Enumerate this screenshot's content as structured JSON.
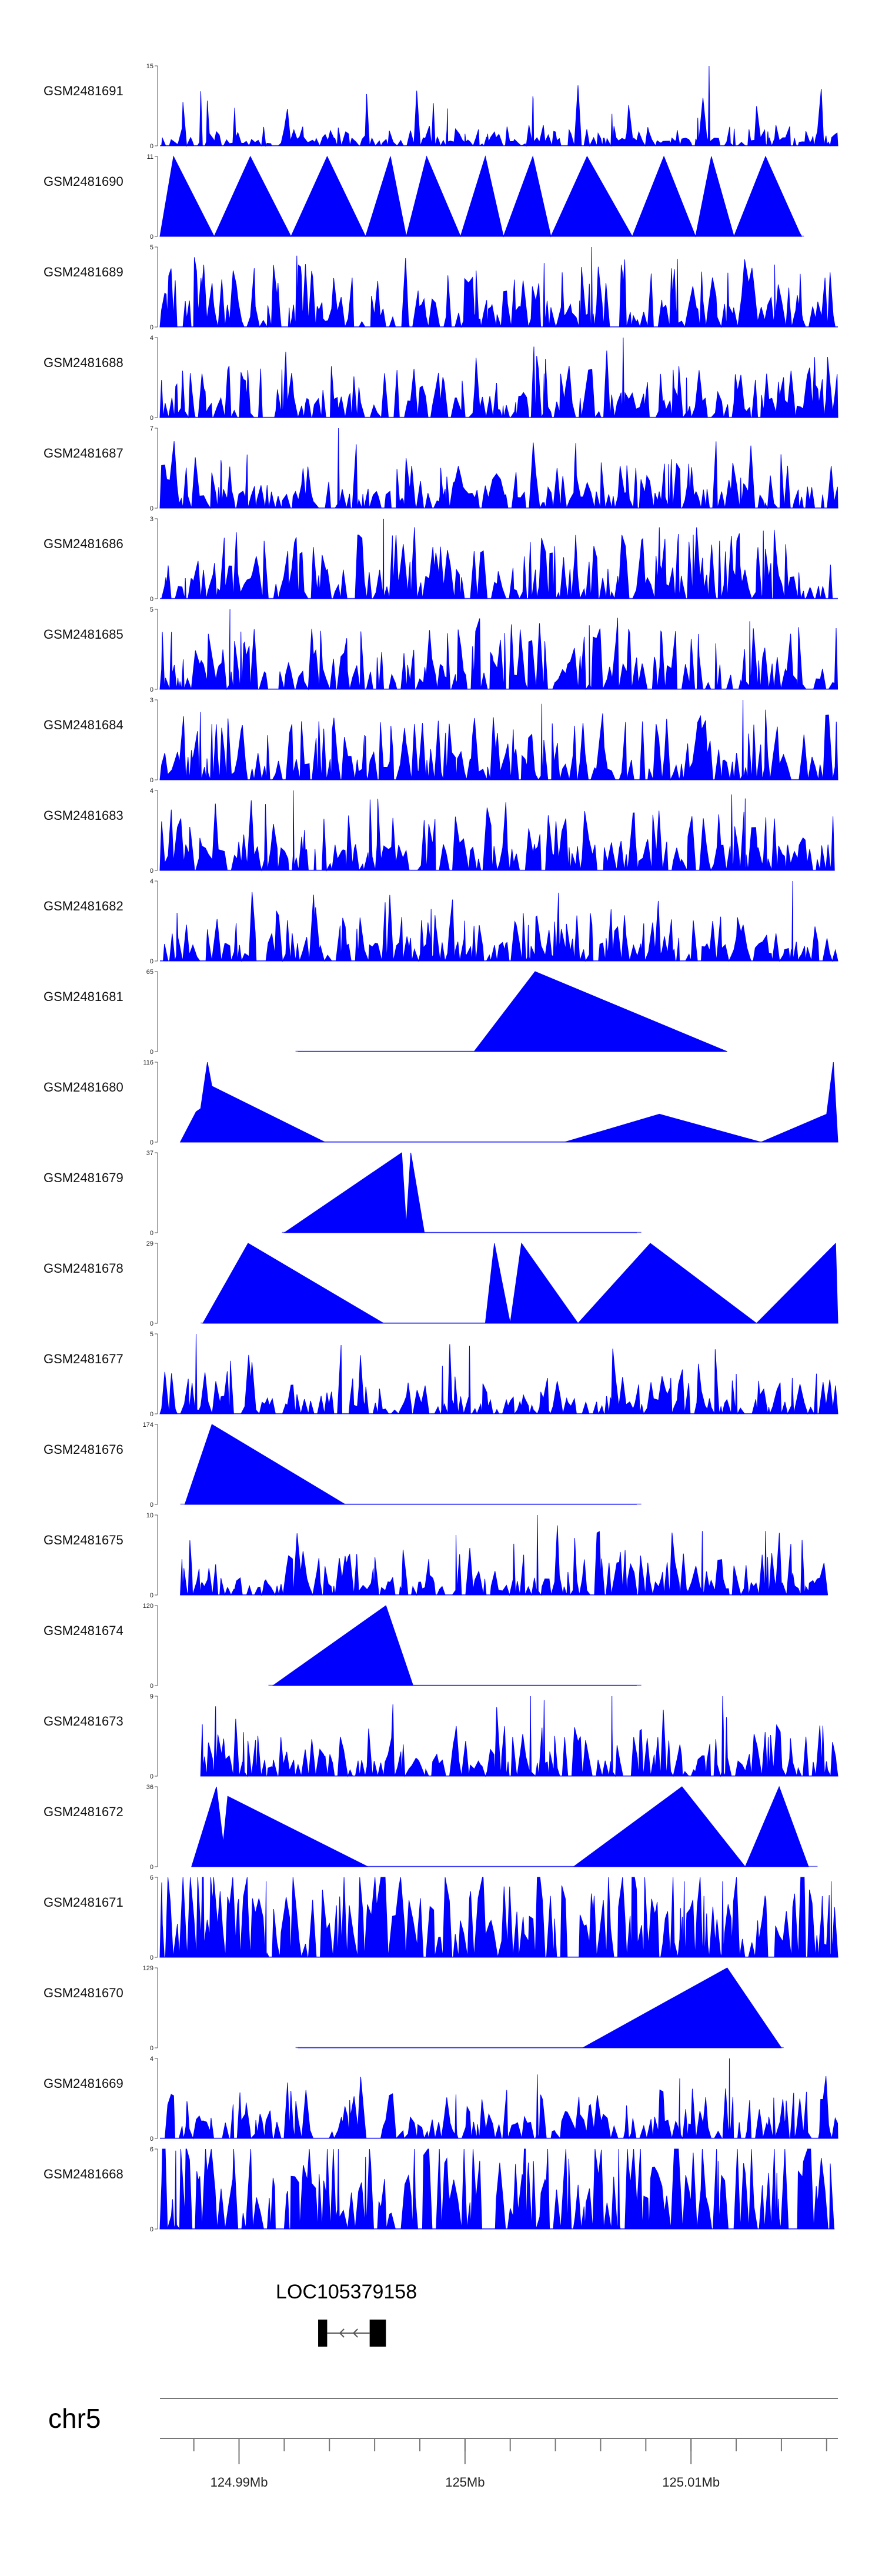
{
  "chart_data": {
    "type": "area",
    "title": "",
    "xlabel": "",
    "fill_color": "#0000ff",
    "xlim": [
      124.9865,
      125.0165
    ],
    "chromosome": "chr5",
    "gene": {
      "name": "LOC105379158",
      "start": 124.9935,
      "end": 124.9965,
      "exon_width": 0.0004,
      "strand": "-"
    },
    "axis": {
      "ticks": [
        124.99,
        125.0,
        125.01
      ],
      "tick_labels": [
        "124.99Mb",
        "125Mb",
        "125.01Mb"
      ],
      "minor_step": 0.002
    },
    "tracks": [
      {
        "name": "GSM2481691",
        "ymax": 15,
        "min_label": "0",
        "max_label": "15",
        "shape": "dense",
        "seed": 11,
        "base": 0.1,
        "cover": [
          0.0,
          1.0
        ],
        "peaks": [
          [
            124.9992,
            0.2
          ],
          [
            125.0,
            0.15
          ],
          [
            125.003,
            0.62
          ],
          [
            125.0065,
            0.4
          ],
          [
            125.0108,
            1.0
          ],
          [
            125.0103,
            0.35
          ],
          [
            125.001,
            0.15
          ],
          [
            125.0134,
            0.18
          ]
        ]
      },
      {
        "name": "GSM2481690",
        "ymax": 11,
        "min_label": "0",
        "max_label": "11",
        "shape": "sparse",
        "cover": [
          0.0,
          0.95
        ],
        "points": [
          [
            124.9865,
            0
          ],
          [
            124.9871,
            1.0
          ],
          [
            124.9889,
            0
          ],
          [
            124.9905,
            1.0
          ],
          [
            124.9923,
            0
          ],
          [
            124.9939,
            1.0
          ],
          [
            124.9956,
            0
          ],
          [
            124.9967,
            1.0
          ],
          [
            124.9974,
            0
          ],
          [
            124.9983,
            1.0
          ],
          [
            124.9998,
            0
          ],
          [
            125.0009,
            1.0
          ],
          [
            125.0017,
            0
          ],
          [
            125.003,
            1.0
          ],
          [
            125.0038,
            0
          ],
          [
            125.0054,
            1.0
          ],
          [
            125.0074,
            0
          ],
          [
            125.0088,
            1.0
          ],
          [
            125.0102,
            0
          ],
          [
            125.0109,
            1.0
          ],
          [
            125.0119,
            0
          ],
          [
            125.0133,
            1.0
          ],
          [
            125.0149,
            0
          ],
          [
            125.0148,
            0.05
          ]
        ]
      },
      {
        "name": "GSM2481689",
        "ymax": 5,
        "min_label": "0",
        "max_label": "5",
        "shape": "dense",
        "seed": 23,
        "base": 0.3,
        "cover": [
          0.0,
          1.0
        ],
        "peaks": [
          [
            125.0056,
            1.0
          ],
          [
            125.0035,
            0.8
          ],
          [
            125.0094,
            0.85
          ],
          [
            125.0137,
            0.78
          ]
        ]
      },
      {
        "name": "GSM2481688",
        "ymax": 4,
        "min_label": "0",
        "max_label": "4",
        "shape": "dense",
        "seed": 37,
        "base": 0.25,
        "cover": [
          0.0,
          1.0
        ],
        "peaks": [
          [
            125.007,
            1.0
          ],
          [
            124.9919,
            0.6
          ],
          [
            125.0035,
            0.55
          ],
          [
            125.0098,
            0.5
          ]
        ]
      },
      {
        "name": "GSM2481687",
        "ymax": 7,
        "min_label": "0",
        "max_label": "7",
        "shape": "dense",
        "seed": 41,
        "base": 0.22,
        "cover": [
          0.0,
          1.0
        ],
        "peaks": [
          [
            124.9944,
            1.0
          ],
          [
            124.9892,
            0.6
          ],
          [
            125.009,
            0.55
          ],
          [
            125.0122,
            0.38
          ]
        ]
      },
      {
        "name": "GSM2481686",
        "ymax": 3,
        "min_label": "0",
        "max_label": "3",
        "shape": "dense",
        "seed": 53,
        "base": 0.35,
        "cover": [
          0.0,
          1.0
        ],
        "peaks": [
          [
            124.9964,
            1.0
          ],
          [
            125.0132,
            0.85
          ],
          [
            125.0101,
            0.8
          ]
        ]
      },
      {
        "name": "GSM2481685",
        "ymax": 5,
        "min_label": "0",
        "max_label": "5",
        "shape": "dense",
        "seed": 67,
        "base": 0.3,
        "cover": [
          0.0,
          1.0
        ],
        "peaks": [
          [
            124.9896,
            1.0
          ],
          [
            125.0126,
            0.85
          ],
          [
            125.0055,
            0.8
          ]
        ]
      },
      {
        "name": "GSM2481684",
        "ymax": 3,
        "min_label": "0",
        "max_label": "3",
        "shape": "dense",
        "seed": 71,
        "base": 0.32,
        "cover": [
          0.0,
          1.0
        ],
        "peaks": [
          [
            125.0123,
            1.0
          ],
          [
            125.0034,
            0.95
          ],
          [
            124.9956,
            0.55
          ]
        ]
      },
      {
        "name": "GSM2481683",
        "ymax": 4,
        "min_label": "0",
        "max_label": "4",
        "shape": "dense",
        "seed": 83,
        "base": 0.3,
        "cover": [
          0.0,
          0.995
        ],
        "peaks": [
          [
            124.9924,
            1.0
          ],
          [
            125.0118,
            0.95
          ],
          [
            125.0124,
            0.9
          ]
        ]
      },
      {
        "name": "GSM2481682",
        "ymax": 4,
        "min_label": "0",
        "max_label": "4",
        "shape": "dense",
        "seed": 97,
        "base": 0.22,
        "cover": [
          0.0,
          1.0
        ],
        "peaks": [
          [
            125.0145,
            1.0
          ],
          [
            124.9985,
            0.65
          ],
          [
            125.0028,
            0.45
          ]
        ]
      },
      {
        "name": "GSM2481681",
        "ymax": 65,
        "min_label": "0",
        "max_label": "65",
        "shape": "sparse",
        "cover": [
          0.2,
          0.765
        ],
        "points": [
          [
            124.9926,
            0
          ],
          [
            125.0004,
            0
          ],
          [
            125.0031,
            1.0
          ],
          [
            125.0116,
            0
          ]
        ]
      },
      {
        "name": "GSM2481680",
        "ymax": 116,
        "min_label": "0",
        "max_label": "116",
        "shape": "sparse",
        "cover": [
          0.03,
          1.0
        ],
        "points": [
          [
            124.9874,
            0
          ],
          [
            124.9881,
            0.38
          ],
          [
            124.9883,
            0.42
          ],
          [
            124.9886,
            1.0
          ],
          [
            124.9888,
            0.7
          ],
          [
            124.9938,
            0
          ],
          [
            125.0044,
            0
          ],
          [
            125.0086,
            0.35
          ],
          [
            125.0131,
            0
          ],
          [
            125.016,
            0.35
          ],
          [
            125.0163,
            1.0
          ],
          [
            125.0165,
            0
          ]
        ]
      },
      {
        "name": "GSM2481679",
        "ymax": 37,
        "min_label": "0",
        "max_label": "37",
        "shape": "sparse",
        "cover": [
          0.18,
          0.71
        ],
        "points": [
          [
            124.992,
            0
          ],
          [
            124.9972,
            1.0
          ],
          [
            124.9974,
            0.1
          ],
          [
            124.9976,
            1.0
          ],
          [
            124.9982,
            0
          ],
          [
            125.0076,
            0
          ]
        ]
      },
      {
        "name": "GSM2481678",
        "ymax": 29,
        "min_label": "0",
        "max_label": "29",
        "shape": "sparse",
        "cover": [
          0.06,
          1.0
        ],
        "points": [
          [
            124.9884,
            0
          ],
          [
            124.9904,
            1.0
          ],
          [
            124.9964,
            0
          ],
          [
            125.0009,
            0
          ],
          [
            125.0013,
            1.0
          ],
          [
            125.002,
            0
          ],
          [
            125.0025,
            1.0
          ],
          [
            125.005,
            0
          ],
          [
            125.0082,
            1.0
          ],
          [
            125.0129,
            0
          ],
          [
            125.0164,
            1.0
          ],
          [
            125.0165,
            0
          ]
        ]
      },
      {
        "name": "GSM2481677",
        "ymax": 5,
        "min_label": "0",
        "max_label": "5",
        "shape": "dense",
        "seed": 113,
        "base": 0.18,
        "cover": [
          0.0,
          1.0
        ],
        "peaks": [
          [
            124.9881,
            1.0
          ],
          [
            125.0002,
            0.85
          ],
          [
            124.999,
            0.6
          ],
          [
            125.012,
            0.5
          ]
        ]
      },
      {
        "name": "GSM2481676",
        "ymax": 174,
        "min_label": "0",
        "max_label": "174",
        "shape": "sparse",
        "cover": [
          0.03,
          0.71
        ],
        "points": [
          [
            124.9876,
            0
          ],
          [
            124.9888,
            1.0
          ],
          [
            124.9947,
            0
          ],
          [
            125.0076,
            0
          ]
        ]
      },
      {
        "name": "GSM2481675",
        "ymax": 10,
        "min_label": "0",
        "max_label": "10",
        "shape": "dense",
        "seed": 127,
        "base": 0.2,
        "cover": [
          0.03,
          0.985
        ],
        "peaks": [
          [
            125.0032,
            1.0
          ],
          [
            125.0105,
            0.8
          ],
          [
            125.0133,
            0.8
          ],
          [
            124.9996,
            0.75
          ]
        ]
      },
      {
        "name": "GSM2481674",
        "ymax": 120,
        "min_label": "0",
        "max_label": "120",
        "shape": "sparse",
        "cover": [
          0.16,
          0.71
        ],
        "points": [
          [
            124.9915,
            0
          ],
          [
            124.9965,
            1.0
          ],
          [
            124.9977,
            0
          ],
          [
            125.0076,
            0
          ]
        ]
      },
      {
        "name": "GSM2481673",
        "ymax": 9,
        "min_label": "0",
        "max_label": "9",
        "shape": "dense",
        "seed": 139,
        "base": 0.25,
        "cover": [
          0.06,
          1.0
        ],
        "peaks": [
          [
            125.0029,
            1.0
          ],
          [
            125.0035,
            0.95
          ],
          [
            125.0114,
            1.0
          ],
          [
            125.0065,
            1.0
          ],
          [
            124.9902,
            0.55
          ]
        ]
      },
      {
        "name": "GSM2481672",
        "ymax": 36,
        "min_label": "0",
        "max_label": "36",
        "shape": "sparse",
        "cover": [
          0.05,
          0.97
        ],
        "points": [
          [
            124.9879,
            0
          ],
          [
            124.989,
            1.0
          ],
          [
            124.9893,
            0.3
          ],
          [
            124.9895,
            0.88
          ],
          [
            124.9957,
            0
          ],
          [
            125.0048,
            0
          ],
          [
            125.0096,
            1.0
          ],
          [
            125.0124,
            0
          ],
          [
            125.0139,
            1.0
          ],
          [
            125.0152,
            0
          ]
        ]
      },
      {
        "name": "GSM2481671",
        "ymax": 6,
        "min_label": "0",
        "max_label": "6",
        "shape": "dense",
        "seed": 151,
        "base": 0.7,
        "cover": [
          0.0,
          1.0
        ],
        "peaks": [
          [
            124.9912,
            0.95
          ],
          [
            125.0114,
            0.95
          ],
          [
            125.0162,
            0.95
          ],
          [
            125.0097,
            0.95
          ]
        ]
      },
      {
        "name": "GSM2481670",
        "ymax": 129,
        "min_label": "0",
        "max_label": "129",
        "shape": "sparse",
        "cover": [
          0.2,
          0.92
        ],
        "points": [
          [
            124.9926,
            0
          ],
          [
            125.0052,
            0
          ],
          [
            125.0116,
            1.0
          ],
          [
            125.014,
            0
          ]
        ]
      },
      {
        "name": "GSM2481669",
        "ymax": 4,
        "min_label": "0",
        "max_label": "4",
        "shape": "dense",
        "seed": 163,
        "base": 0.25,
        "cover": [
          0.0,
          1.0
        ],
        "peaks": [
          [
            125.0117,
            1.0
          ],
          [
            125.0032,
            0.8
          ],
          [
            125.0095,
            0.75
          ],
          [
            124.9996,
            0.55
          ]
        ]
      },
      {
        "name": "GSM2481668",
        "ymax": 6,
        "min_label": "0",
        "max_label": "6",
        "shape": "dense",
        "seed": 181,
        "base": 0.65,
        "cover": [
          0.0,
          0.995
        ],
        "peaks": [
          [
            124.9872,
            0.98
          ],
          [
            125.0068,
            1.0
          ],
          [
            124.9956,
            0.9
          ],
          [
            125.0138,
            0.7
          ],
          [
            125.0112,
            0.85
          ]
        ]
      }
    ]
  }
}
